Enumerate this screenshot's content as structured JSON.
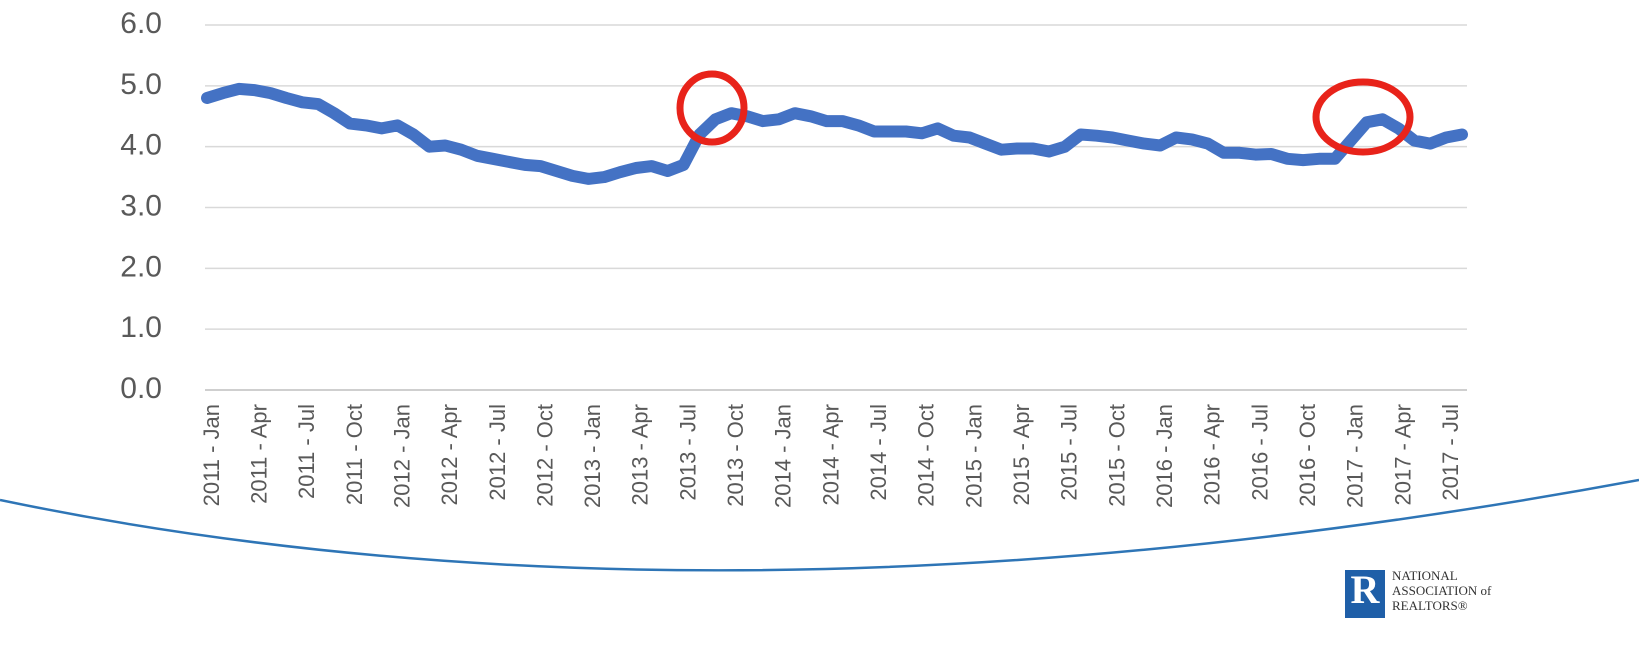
{
  "chart_data": {
    "type": "line",
    "categories": [
      "2011 - Jan",
      null,
      null,
      "2011 - Apr",
      null,
      null,
      "2011 - Jul",
      null,
      null,
      "2011 - Oct",
      null,
      null,
      "2012 - Jan",
      null,
      null,
      "2012 - Apr",
      null,
      null,
      "2012 - Jul",
      null,
      null,
      "2012 - Oct",
      null,
      null,
      "2013 - Jan",
      null,
      null,
      "2013 - Apr",
      null,
      null,
      "2013 - Jul",
      null,
      null,
      "2013 - Oct",
      null,
      null,
      "2014 - Jan",
      null,
      null,
      "2014 - Apr",
      null,
      null,
      "2014 - Jul",
      null,
      null,
      "2014 - Oct",
      null,
      null,
      "2015 - Jan",
      null,
      null,
      "2015 - Apr",
      null,
      null,
      "2015 - Jul",
      null,
      null,
      "2015 - Oct",
      null,
      null,
      "2016 - Jan",
      null,
      null,
      "2016 - Apr",
      null,
      null,
      "2016 - Jul",
      null,
      null,
      "2016 - Oct",
      null,
      null,
      "2017 - Jan",
      null,
      null,
      "2017 - Apr",
      null,
      null,
      "2017 - Jul",
      null
    ],
    "series": [
      {
        "color": "#4472c4",
        "values": [
          4.8,
          4.88,
          4.95,
          4.93,
          4.88,
          4.8,
          4.73,
          4.7,
          4.55,
          4.38,
          4.35,
          4.3,
          4.35,
          4.2,
          4.0,
          4.02,
          3.95,
          3.85,
          3.8,
          3.75,
          3.7,
          3.68,
          3.6,
          3.52,
          3.47,
          3.5,
          3.58,
          3.65,
          3.68,
          3.6,
          3.7,
          4.2,
          4.45,
          4.55,
          4.5,
          4.42,
          4.45,
          4.55,
          4.5,
          4.42,
          4.42,
          4.35,
          4.25,
          4.25,
          4.25,
          4.22,
          4.3,
          4.18,
          4.15,
          4.05,
          3.95,
          3.97,
          3.97,
          3.92,
          4.0,
          4.2,
          4.18,
          4.15,
          4.1,
          4.05,
          4.02,
          4.15,
          4.12,
          4.05,
          3.9,
          3.9,
          3.87,
          3.88,
          3.8,
          3.78,
          3.8,
          3.8,
          4.1,
          4.4,
          4.45,
          4.3,
          4.1,
          4.05,
          4.15,
          4.2
        ]
      }
    ],
    "ylim": [
      0,
      6
    ],
    "yticks": [
      {
        "value": 0,
        "label": "0.0"
      },
      {
        "value": 1,
        "label": "1.0"
      },
      {
        "value": 2,
        "label": "2.0"
      },
      {
        "value": 3,
        "label": "3.0"
      },
      {
        "value": 4,
        "label": "4.0"
      },
      {
        "value": 5,
        "label": "5.0"
      },
      {
        "value": 6,
        "label": "6.0"
      }
    ],
    "grid": true
  },
  "logo": {
    "lines": [
      "NATIONAL",
      "ASSOCIATION of",
      "REALTORS®"
    ]
  }
}
